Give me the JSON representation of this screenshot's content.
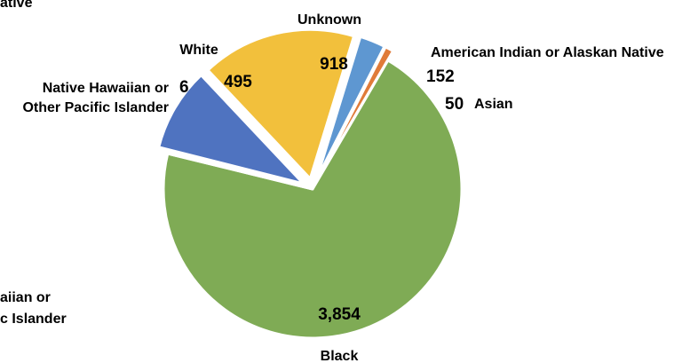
{
  "chart_data": {
    "type": "pie",
    "slices": [
      {
        "label": "Unknown",
        "value": 918,
        "value_label": "918",
        "color": "#f2c03c",
        "exploded": true
      },
      {
        "label": "American Indian or Alaskan Native",
        "value": 152,
        "value_label": "152",
        "color": "#5e97d1",
        "exploded": true
      },
      {
        "label": "Asian",
        "value": 50,
        "value_label": "50",
        "color": "#e07b39",
        "exploded": true
      },
      {
        "label": "Black",
        "value": 3854,
        "value_label": "3,854",
        "color": "#7fab55",
        "exploded": false
      },
      {
        "label_lines": [
          "Native Hawaiian or",
          "Other Pacific Islander"
        ],
        "value": 6,
        "value_label": "6",
        "color": "#d8d8d8",
        "exploded": false
      },
      {
        "label": "White",
        "value": 495,
        "value_label": "495",
        "color": "#4f73c0",
        "exploded": true
      }
    ],
    "clipped_text": {
      "top_left": "ative",
      "bottom_left_lines": [
        "aiian or",
        "c Islander"
      ]
    }
  }
}
